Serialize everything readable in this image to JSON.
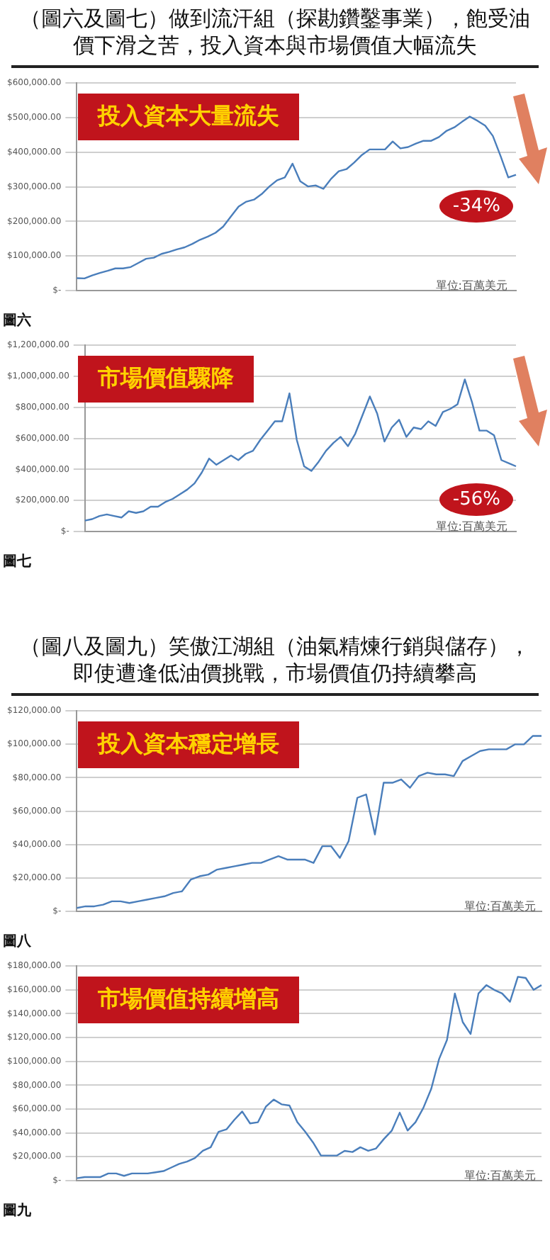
{
  "chart_data": [
    {
      "type": "line",
      "title": "（圖六及圖七）做到流汗組（探勘鑽鑿事業），飽受油價下滑之苦，投入資本與市場價值大幅流失",
      "annotations": [
        "投入資本大量流失",
        "單位:百萬美元",
        "圖六",
        "-34%"
      ],
      "categories": [
        null,
        null,
        null,
        null,
        null,
        null,
        null,
        null,
        null,
        null,
        null,
        null,
        null,
        null,
        null,
        null,
        null,
        null,
        null,
        null,
        null,
        null,
        null,
        null,
        null,
        null,
        null,
        null,
        null,
        null,
        null,
        null,
        null,
        null,
        null,
        null,
        null,
        null,
        null,
        null,
        null,
        null,
        null,
        null,
        null,
        null,
        null,
        null,
        null,
        null,
        null,
        null,
        null,
        null,
        null,
        null,
        null,
        null
      ],
      "series": [
        {
          "color": "#4a7ebb",
          "values": [
            36000,
            35000,
            44000,
            51000,
            57000,
            64000,
            64000,
            68000,
            80000,
            92000,
            95000,
            106000,
            112000,
            119000,
            125000,
            135000,
            147000,
            156000,
            167000,
            185000,
            214000,
            243000,
            257000,
            263000,
            279000,
            301000,
            319000,
            327000,
            367000,
            316000,
            301000,
            304000,
            294000,
            323000,
            345000,
            351000,
            370000,
            392000,
            408000,
            408000,
            408000,
            431000,
            411000,
            415000,
            425000,
            433000,
            433000,
            444000,
            462000,
            472000,
            488000,
            503000,
            491000,
            477000,
            447000,
            389000,
            327000,
            335000
          ]
        }
      ],
      "ylim": [
        0,
        600000
      ],
      "yticks": [
        {
          "value": 0,
          "label": "$-"
        },
        {
          "value": 100000,
          "label": "$100,000.00"
        },
        {
          "value": 200000,
          "label": "$200,000.00"
        },
        {
          "value": 300000,
          "label": "$300,000.00"
        },
        {
          "value": 400000,
          "label": "$400,000.00"
        },
        {
          "value": 500000,
          "label": "$500,000.00"
        },
        {
          "value": 600000,
          "label": "$600,000.00"
        }
      ],
      "grid": "y",
      "tick_labels": "y"
    },
    {
      "type": "line",
      "annotations": [
        "市場價值驟降",
        "單位:百萬美元",
        "圖七",
        "-56%"
      ],
      "categories": [
        null,
        null,
        null,
        null,
        null,
        null,
        null,
        null,
        null,
        null,
        null,
        null,
        null,
        null,
        null,
        null,
        null,
        null,
        null,
        null,
        null,
        null,
        null,
        null,
        null,
        null,
        null,
        null,
        null,
        null,
        null,
        null,
        null,
        null,
        null,
        null,
        null,
        null,
        null,
        null,
        null,
        null,
        null,
        null,
        null,
        null,
        null,
        null,
        null,
        null,
        null,
        null,
        null,
        null,
        null,
        null,
        null,
        null,
        null,
        null
      ],
      "series": [
        {
          "color": "#4a7ebb",
          "values": [
            70000,
            80000,
            100000,
            110000,
            100000,
            90000,
            130000,
            120000,
            130000,
            160000,
            160000,
            190000,
            210000,
            240000,
            270000,
            310000,
            380000,
            470000,
            430000,
            460000,
            490000,
            460000,
            500000,
            520000,
            590000,
            650000,
            710000,
            710000,
            890000,
            590000,
            420000,
            390000,
            450000,
            520000,
            570000,
            610000,
            550000,
            630000,
            750000,
            870000,
            760000,
            580000,
            670000,
            720000,
            610000,
            670000,
            660000,
            710000,
            680000,
            770000,
            790000,
            820000,
            980000,
            830000,
            650000,
            650000,
            620000,
            460000,
            440000,
            420000
          ]
        }
      ],
      "ylim": [
        0,
        1200000
      ],
      "yticks": [
        {
          "value": 0,
          "label": "$-"
        },
        {
          "value": 200000,
          "label": "$200,000.00"
        },
        {
          "value": 400000,
          "label": "$400,000.00"
        },
        {
          "value": 600000,
          "label": "$600,000.00"
        },
        {
          "value": 800000,
          "label": "$800,000.00"
        },
        {
          "value": 1000000,
          "label": "$1,000,000.00"
        },
        {
          "value": 1200000,
          "label": "$1,200,000.00"
        }
      ],
      "grid": "y",
      "tick_labels": "y"
    },
    {
      "type": "line",
      "title": "（圖八及圖九）笑傲江湖組（油氣精煉行銷與儲存），即使遭逢低油價挑戰，市場價值仍持續攀高",
      "annotations": [
        "投入資本穩定增長",
        "單位:百萬美元",
        "圖八"
      ],
      "categories": [
        null,
        null,
        null,
        null,
        null,
        null,
        null,
        null,
        null,
        null,
        null,
        null,
        null,
        null,
        null,
        null,
        null,
        null,
        null,
        null,
        null,
        null,
        null,
        null,
        null,
        null,
        null,
        null,
        null,
        null,
        null,
        null,
        null,
        null,
        null,
        null,
        null,
        null,
        null,
        null,
        null,
        null,
        null,
        null,
        null,
        null,
        null,
        null,
        null,
        null,
        null,
        null,
        null,
        null
      ],
      "series": [
        {
          "color": "#4a7ebb",
          "values": [
            2000,
            3000,
            3000,
            4000,
            6000,
            6000,
            5000,
            6000,
            7000,
            8000,
            9000,
            11000,
            12000,
            19000,
            21000,
            22000,
            25000,
            26000,
            27000,
            28000,
            29000,
            29000,
            31000,
            33000,
            31000,
            31000,
            31000,
            29000,
            39000,
            39000,
            32000,
            42000,
            68000,
            70000,
            46000,
            77000,
            77000,
            79000,
            74000,
            81000,
            83000,
            82000,
            82000,
            81000,
            90000,
            93000,
            96000,
            97000,
            97000,
            97000,
            100000,
            100000,
            105000,
            105000
          ]
        }
      ],
      "ylim": [
        0,
        120000
      ],
      "yticks": [
        {
          "value": 0,
          "label": "$-"
        },
        {
          "value": 20000,
          "label": "$20,000.00"
        },
        {
          "value": 40000,
          "label": "$40,000.00"
        },
        {
          "value": 60000,
          "label": "$60,000.00"
        },
        {
          "value": 80000,
          "label": "$80,000.00"
        },
        {
          "value": 100000,
          "label": "$100,000.00"
        },
        {
          "value": 120000,
          "label": "$120,000.00"
        }
      ],
      "grid": "y",
      "tick_labels": "y"
    },
    {
      "type": "line",
      "annotations": [
        "市場價值持續增高",
        "單位:百萬美元",
        "圖九"
      ],
      "categories": [
        null,
        null,
        null,
        null,
        null,
        null,
        null,
        null,
        null,
        null,
        null,
        null,
        null,
        null,
        null,
        null,
        null,
        null,
        null,
        null,
        null,
        null,
        null,
        null,
        null,
        null,
        null,
        null,
        null,
        null,
        null,
        null,
        null,
        null,
        null,
        null,
        null,
        null,
        null,
        null,
        null,
        null,
        null,
        null,
        null,
        null,
        null,
        null,
        null,
        null,
        null,
        null,
        null,
        null,
        null,
        null,
        null,
        null,
        null,
        null
      ],
      "series": [
        {
          "color": "#4a7ebb",
          "values": [
            2000,
            3000,
            3000,
            3000,
            6000,
            6000,
            4000,
            6000,
            6000,
            6000,
            7000,
            8000,
            11000,
            14000,
            16000,
            19000,
            25000,
            28000,
            41000,
            43000,
            51000,
            58000,
            48000,
            49000,
            62000,
            68000,
            64000,
            63000,
            49000,
            41000,
            32000,
            21000,
            21000,
            21000,
            25000,
            24000,
            28000,
            25000,
            27000,
            35000,
            42000,
            57000,
            42000,
            49000,
            61000,
            77000,
            102000,
            118000,
            157000,
            133000,
            123000,
            157000,
            164000,
            160000,
            157000,
            150000,
            171000,
            170000,
            160000,
            164000
          ]
        }
      ],
      "ylim": [
        0,
        180000
      ],
      "yticks": [
        {
          "value": 0,
          "label": "$-"
        },
        {
          "value": 20000,
          "label": "$20,000.00"
        },
        {
          "value": 40000,
          "label": "$40,000.00"
        },
        {
          "value": 60000,
          "label": "$60,000.00"
        },
        {
          "value": 80000,
          "label": "$80,000.00"
        },
        {
          "value": 100000,
          "label": "$100,000.00"
        },
        {
          "value": 120000,
          "label": "$120,000.00"
        },
        {
          "value": 140000,
          "label": "$140,000.00"
        },
        {
          "value": 160000,
          "label": "$160,000.00"
        },
        {
          "value": 180000,
          "label": "$180,000.00"
        }
      ],
      "grid": "y",
      "tick_labels": "y"
    }
  ]
}
